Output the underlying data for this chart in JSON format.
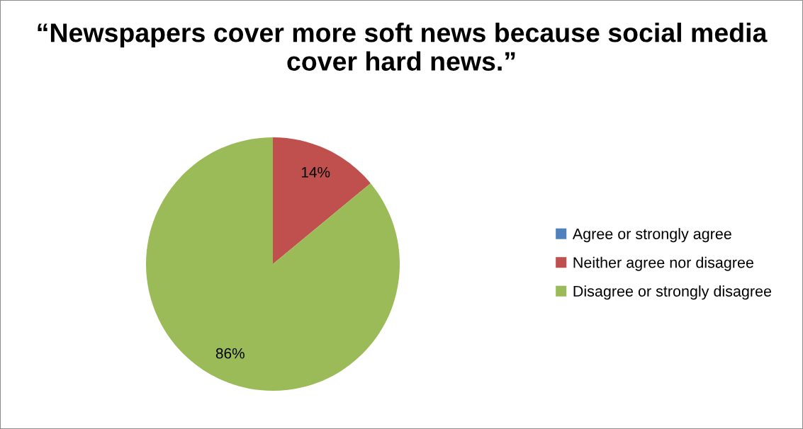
{
  "chart_data": {
    "type": "pie",
    "title": "“Newspapers cover more soft news because social media cover hard news.”",
    "categories": [
      "Agree or strongly agree",
      "Neither agree nor disagree",
      "Disagree or strongly disagree"
    ],
    "values": [
      0,
      14,
      86
    ],
    "colors": [
      "#4f81bd",
      "#c0504d",
      "#9bbb59"
    ],
    "value_labels": [
      null,
      "14%",
      "86%"
    ],
    "legend": "right"
  }
}
